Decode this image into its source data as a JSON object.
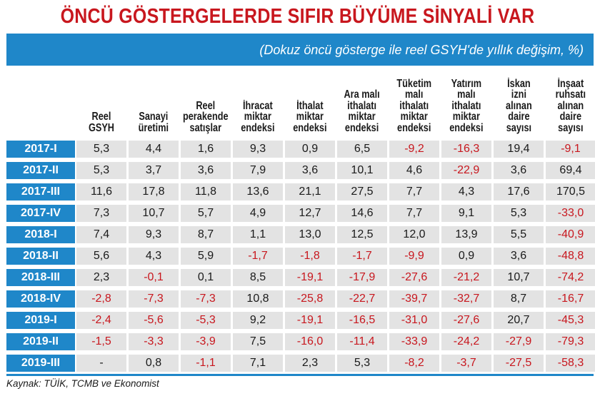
{
  "chart_data": {
    "type": "table",
    "title": "ÖNCÜ GÖSTERGELERDE SIFIR BÜYÜME SİNYALİ VAR",
    "subtitle": "(Dokuz öncü gösterge ile reel GSYH'de yıllık değişim, %)",
    "columns": [
      [
        "Reel",
        "GSYH"
      ],
      [
        "Sanayi",
        "üretimi"
      ],
      [
        "Reel",
        "perakende",
        "satışlar"
      ],
      [
        "İhracat",
        "miktar",
        "endeksi"
      ],
      [
        "İthalat",
        "miktar",
        "endeksi"
      ],
      [
        "Ara malı",
        "ithalatı",
        "miktar",
        "endeksi"
      ],
      [
        "Tüketim",
        "malı",
        "ithalatı",
        "miktar",
        "endeksi"
      ],
      [
        "Yatırım",
        "malı",
        "ithalatı",
        "miktar",
        "endeksi"
      ],
      [
        "İskan",
        "izni",
        "alınan",
        "daire",
        "sayısı"
      ],
      [
        "İnşaat",
        "ruhsatı",
        "alınan",
        "daire",
        "sayısı"
      ]
    ],
    "rows": [
      {
        "label": "2017-I",
        "values": [
          "5,3",
          "4,4",
          "1,6",
          "9,3",
          "0,9",
          "6,5",
          "-9,2",
          "-16,3",
          "19,4",
          "-9,1"
        ]
      },
      {
        "label": "2017-II",
        "values": [
          "5,3",
          "3,7",
          "3,6",
          "7,9",
          "3,6",
          "10,1",
          "4,6",
          "-22,9",
          "3,6",
          "69,4"
        ]
      },
      {
        "label": "2017-III",
        "values": [
          "11,6",
          "17,8",
          "11,8",
          "13,6",
          "21,1",
          "27,5",
          "7,7",
          "4,3",
          "17,6",
          "170,5"
        ]
      },
      {
        "label": "2017-IV",
        "values": [
          "7,3",
          "10,7",
          "5,7",
          "4,9",
          "12,7",
          "14,6",
          "7,7",
          "9,1",
          "5,3",
          "-33,0"
        ]
      },
      {
        "label": "2018-I",
        "values": [
          "7,4",
          "9,3",
          "8,7",
          "1,1",
          "13,0",
          "12,5",
          "12,0",
          "13,9",
          "5,5",
          "-40,9"
        ]
      },
      {
        "label": "2018-II",
        "values": [
          "5,6",
          "4,3",
          "5,9",
          "-1,7",
          "-1,8",
          "-1,7",
          "-9,9",
          "0,9",
          "3,6",
          "-48,8"
        ]
      },
      {
        "label": "2018-III",
        "values": [
          "2,3",
          "-0,1",
          "0,1",
          "8,5",
          "-19,1",
          "-17,9",
          "-27,6",
          "-21,2",
          "10,7",
          "-74,2"
        ]
      },
      {
        "label": "2018-IV",
        "values": [
          "-2,8",
          "-7,3",
          "-7,3",
          "10,8",
          "-25,8",
          "-22,7",
          "-39,7",
          "-32,7",
          "8,7",
          "-16,7"
        ]
      },
      {
        "label": "2019-I",
        "values": [
          "-2,4",
          "-5,6",
          "-5,3",
          "9,2",
          "-19,1",
          "-16,5",
          "-31,0",
          "-27,6",
          "20,7",
          "-45,3"
        ]
      },
      {
        "label": "2019-II",
        "values": [
          "-1,5",
          "-3,3",
          "-3,9",
          "7,5",
          "-16,0",
          "-11,4",
          "-33,9",
          "-24,2",
          "-27,9",
          "-79,3"
        ]
      },
      {
        "label": "2019-III",
        "values": [
          "-",
          "0,8",
          "-1,1",
          "7,1",
          "2,3",
          "5,3",
          "-8,2",
          "-3,7",
          "-27,5",
          "-58,3"
        ]
      }
    ],
    "source": "Kaynak: TÜİK, TCMB ve Ekonomist",
    "colors": {
      "header": "#1f87c9",
      "title": "#c8171e",
      "negative": "#c8171e",
      "cell_bg": "#e3e3e3"
    }
  }
}
